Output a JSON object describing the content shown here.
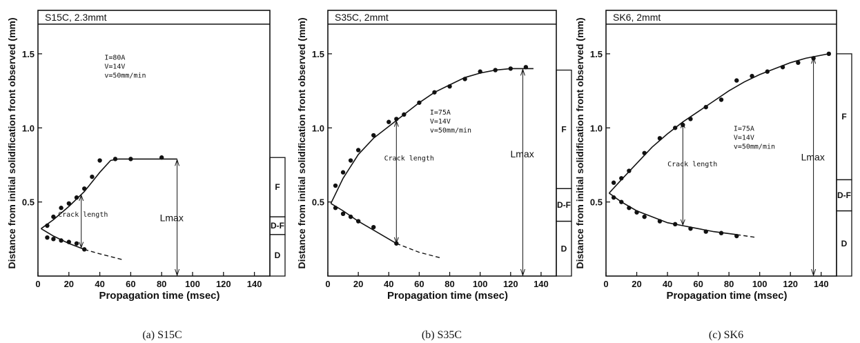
{
  "shared": {
    "xlabel": "Propagation time (msec)",
    "ylabel": "Distance from initial solidification front observed (mm)",
    "crack_label": "Crack length",
    "lmax_label": "Lmax",
    "x_ticks": [
      "0",
      "20",
      "40",
      "60",
      "80",
      "100",
      "120",
      "140"
    ],
    "y_ticks": [
      "0.5",
      "1.0",
      "1.5"
    ]
  },
  "chart_data": [
    {
      "type": "scatter",
      "title": "S15C, 2.3mmt",
      "caption": "(a) S15C",
      "conditions": [
        "I=80A",
        "V=14V",
        "v=50mm/min"
      ],
      "xlabel": "Propagation time (msec)",
      "ylabel": "Distance from initial solidification front observed (mm)",
      "xlim": [
        0,
        150
      ],
      "ylim": [
        0,
        1.7
      ],
      "series": [
        {
          "points": [
            [
              6,
              0.34
            ],
            [
              10,
              0.4
            ],
            [
              15,
              0.46
            ],
            [
              20,
              0.49
            ],
            [
              25,
              0.53
            ],
            [
              30,
              0.59
            ],
            [
              35,
              0.67
            ],
            [
              40,
              0.78
            ],
            [
              50,
              0.79
            ],
            [
              60,
              0.79
            ],
            [
              80,
              0.8
            ]
          ]
        },
        {
          "points": [
            [
              6,
              0.26
            ],
            [
              10,
              0.25
            ],
            [
              15,
              0.24
            ],
            [
              20,
              0.23
            ],
            [
              25,
              0.22
            ],
            [
              30,
              0.18
            ]
          ]
        }
      ],
      "upper_curve": [
        [
          2,
          0.32
        ],
        [
          10,
          0.38
        ],
        [
          20,
          0.47
        ],
        [
          30,
          0.57
        ],
        [
          40,
          0.7
        ],
        [
          47,
          0.78
        ],
        [
          52,
          0.79
        ],
        [
          90,
          0.79
        ]
      ],
      "lower_curve": [
        [
          2,
          0.32
        ],
        [
          10,
          0.27
        ],
        [
          20,
          0.22
        ],
        [
          30,
          0.18
        ]
      ],
      "lower_dashed": [
        [
          30,
          0.18
        ],
        [
          40,
          0.15
        ],
        [
          55,
          0.11
        ]
      ],
      "crack_x": 28,
      "lmax_x": 90,
      "zones": [
        {
          "label": "F",
          "from": 0.4,
          "to": 0.8
        },
        {
          "label": "D-F",
          "from": 0.28,
          "to": 0.4
        },
        {
          "label": "D",
          "from": 0.0,
          "to": 0.28
        }
      ]
    },
    {
      "type": "scatter",
      "title": "S35C, 2mmt",
      "caption": "(b) S35C",
      "conditions": [
        "I=75A",
        "V=14V",
        "v=50mm/min"
      ],
      "xlabel": "Propagation time (msec)",
      "ylabel": "Distance from initial solidification front observed (mm)",
      "xlim": [
        0,
        150
      ],
      "ylim": [
        0,
        1.7
      ],
      "series": [
        {
          "points": [
            [
              5,
              0.61
            ],
            [
              10,
              0.7
            ],
            [
              15,
              0.78
            ],
            [
              20,
              0.85
            ],
            [
              30,
              0.95
            ],
            [
              40,
              1.04
            ],
            [
              45,
              1.06
            ],
            [
              50,
              1.09
            ],
            [
              60,
              1.17
            ],
            [
              70,
              1.24
            ],
            [
              80,
              1.28
            ],
            [
              90,
              1.33
            ],
            [
              100,
              1.38
            ],
            [
              110,
              1.39
            ],
            [
              120,
              1.4
            ],
            [
              130,
              1.41
            ]
          ]
        },
        {
          "points": [
            [
              5,
              0.46
            ],
            [
              10,
              0.42
            ],
            [
              15,
              0.4
            ],
            [
              20,
              0.37
            ],
            [
              30,
              0.33
            ],
            [
              45,
              0.22
            ]
          ]
        }
      ],
      "upper_curve": [
        [
          2,
          0.49
        ],
        [
          10,
          0.66
        ],
        [
          20,
          0.82
        ],
        [
          30,
          0.93
        ],
        [
          40,
          1.01
        ],
        [
          50,
          1.09
        ],
        [
          60,
          1.17
        ],
        [
          70,
          1.24
        ],
        [
          80,
          1.29
        ],
        [
          90,
          1.34
        ],
        [
          100,
          1.37
        ],
        [
          110,
          1.39
        ],
        [
          120,
          1.4
        ],
        [
          135,
          1.4
        ]
      ],
      "lower_curve": [
        [
          2,
          0.49
        ],
        [
          10,
          0.44
        ],
        [
          20,
          0.37
        ],
        [
          30,
          0.31
        ],
        [
          45,
          0.22
        ]
      ],
      "lower_dashed": [
        [
          45,
          0.22
        ],
        [
          60,
          0.16
        ],
        [
          75,
          0.12
        ]
      ],
      "crack_x": 45,
      "lmax_x": 128,
      "zones": [
        {
          "label": "F",
          "from": 0.59,
          "to": 1.39
        },
        {
          "label": "D-F",
          "from": 0.37,
          "to": 0.59
        },
        {
          "label": "D",
          "from": 0.0,
          "to": 0.37
        }
      ]
    },
    {
      "type": "scatter",
      "title": "SK6, 2mmt",
      "caption": "(c) SK6",
      "conditions": [
        "I=75A",
        "V=14V",
        "v=50mm/min"
      ],
      "xlabel": "Propagation time (msec)",
      "ylabel": "Distance from initial solidification front observed (mm)",
      "xlim": [
        0,
        150
      ],
      "ylim": [
        0,
        1.7
      ],
      "series": [
        {
          "points": [
            [
              5,
              0.63
            ],
            [
              10,
              0.66
            ],
            [
              15,
              0.71
            ],
            [
              25,
              0.83
            ],
            [
              35,
              0.93
            ],
            [
              45,
              1.0
            ],
            [
              50,
              1.02
            ],
            [
              55,
              1.06
            ],
            [
              65,
              1.14
            ],
            [
              75,
              1.19
            ],
            [
              85,
              1.32
            ],
            [
              95,
              1.35
            ],
            [
              105,
              1.38
            ],
            [
              115,
              1.41
            ],
            [
              125,
              1.44
            ],
            [
              135,
              1.47
            ],
            [
              145,
              1.5
            ]
          ]
        },
        {
          "points": [
            [
              5,
              0.53
            ],
            [
              10,
              0.5
            ],
            [
              15,
              0.46
            ],
            [
              20,
              0.43
            ],
            [
              25,
              0.4
            ],
            [
              35,
              0.37
            ],
            [
              45,
              0.35
            ],
            [
              55,
              0.32
            ],
            [
              65,
              0.3
            ],
            [
              75,
              0.29
            ],
            [
              85,
              0.27
            ]
          ]
        }
      ],
      "upper_curve": [
        [
          2,
          0.56
        ],
        [
          10,
          0.65
        ],
        [
          20,
          0.76
        ],
        [
          30,
          0.87
        ],
        [
          40,
          0.96
        ],
        [
          50,
          1.04
        ],
        [
          60,
          1.11
        ],
        [
          70,
          1.18
        ],
        [
          80,
          1.25
        ],
        [
          90,
          1.31
        ],
        [
          100,
          1.36
        ],
        [
          110,
          1.4
        ],
        [
          120,
          1.44
        ],
        [
          130,
          1.47
        ],
        [
          145,
          1.5
        ]
      ],
      "lower_curve": [
        [
          2,
          0.56
        ],
        [
          10,
          0.5
        ],
        [
          20,
          0.44
        ],
        [
          30,
          0.4
        ],
        [
          40,
          0.36
        ],
        [
          50,
          0.34
        ],
        [
          60,
          0.32
        ],
        [
          70,
          0.3
        ],
        [
          85,
          0.28
        ]
      ],
      "lower_dashed": [
        [
          85,
          0.28
        ],
        [
          98,
          0.26
        ]
      ],
      "crack_x": 50,
      "lmax_x": 135,
      "zones": [
        {
          "label": "F",
          "from": 0.65,
          "to": 1.5
        },
        {
          "label": "D-F",
          "from": 0.44,
          "to": 0.65
        },
        {
          "label": "D",
          "from": 0.0,
          "to": 0.44
        }
      ]
    }
  ]
}
